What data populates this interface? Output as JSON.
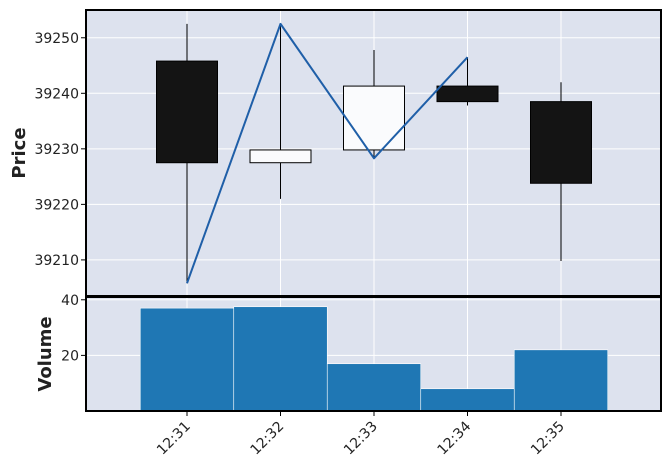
{
  "chart_data": {
    "type": "candlestick",
    "categories": [
      "12:31",
      "12:32",
      "12:33",
      "12:34",
      "12:35"
    ],
    "ohlc": [
      {
        "time": "12:31",
        "open": 39245.8,
        "high": 39252.5,
        "low": 39205.8,
        "close": 39227.5
      },
      {
        "time": "12:32",
        "open": 39227.5,
        "high": 39252.5,
        "low": 39221.0,
        "close": 39229.8
      },
      {
        "time": "12:33",
        "open": 39229.8,
        "high": 39247.8,
        "low": 39228.3,
        "close": 39241.3
      },
      {
        "time": "12:34",
        "open": 39241.3,
        "high": 39246.5,
        "low": 39237.8,
        "close": 39238.5
      },
      {
        "time": "12:35",
        "open": 39238.5,
        "high": 39242.0,
        "low": 39209.8,
        "close": 39223.8
      }
    ],
    "line_series": {
      "x": [
        "12:31",
        "12:32",
        "12:33",
        "12:34"
      ],
      "values": [
        39205.8,
        39252.5,
        39228.3,
        39246.5
      ],
      "color": "#1f5fa8"
    },
    "volume": {
      "values": [
        37,
        37.5,
        17,
        8,
        22
      ],
      "color": "#1f77b4"
    },
    "price_axis": {
      "ylabel": "Price",
      "ylim": [
        39203.5,
        39255
      ],
      "ticks": [
        39210,
        39220,
        39230,
        39240,
        39250
      ]
    },
    "volume_axis": {
      "ylabel": "Volume",
      "ylim": [
        0,
        41
      ],
      "ticks": [
        20,
        40
      ]
    },
    "colors": {
      "panel_bg": "#dde2ee",
      "grid": "#ffffff",
      "down_candle": "#141414",
      "up_candle": "#fafbfd"
    },
    "grid": true
  }
}
